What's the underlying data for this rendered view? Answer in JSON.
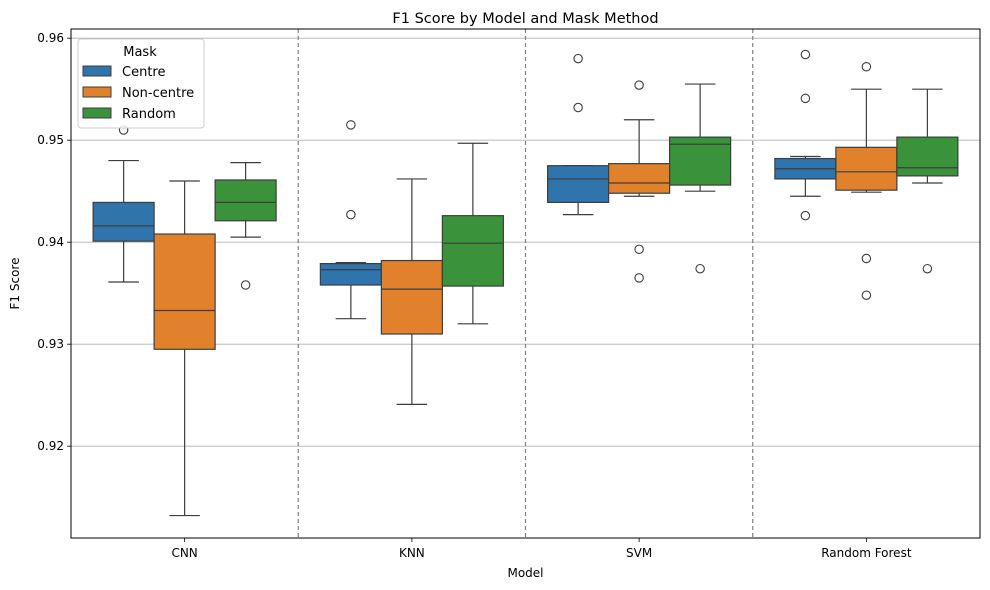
{
  "chart_data": {
    "type": "boxplot",
    "title": "F1 Score by Model and Mask Method",
    "xlabel": "Model",
    "ylabel": "F1 Score",
    "ylim": [
      0.911,
      0.9609
    ],
    "yticks": [
      0.92,
      0.93,
      0.94,
      0.95,
      0.96
    ],
    "ytick_labels": [
      "0.92",
      "0.93",
      "0.94",
      "0.95",
      "0.96"
    ],
    "grid": "y",
    "categories": [
      "CNN",
      "KNN",
      "SVM",
      "Random Forest"
    ],
    "legend": {
      "title": "Mask",
      "position": "top-left"
    },
    "series": [
      {
        "name": "Centre",
        "color": "#2f74ad",
        "boxes": [
          {
            "whisker_low": 0.9361,
            "q1": 0.9401,
            "median": 0.9416,
            "q3": 0.9439,
            "whisker_high": 0.948,
            "outliers": [
              0.951
            ]
          },
          {
            "whisker_low": 0.9325,
            "q1": 0.9358,
            "median": 0.9373,
            "q3": 0.9379,
            "whisker_high": 0.938,
            "outliers": [
              0.9515,
              0.9427
            ]
          },
          {
            "whisker_low": 0.9427,
            "q1": 0.9439,
            "median": 0.9462,
            "q3": 0.9475,
            "whisker_high": 0.9475,
            "outliers": [
              0.958,
              0.9532
            ]
          },
          {
            "whisker_low": 0.9445,
            "q1": 0.9462,
            "median": 0.9472,
            "q3": 0.9482,
            "whisker_high": 0.9484,
            "outliers": [
              0.9584,
              0.9541,
              0.9426
            ]
          }
        ]
      },
      {
        "name": "Non-centre",
        "color": "#e1812c",
        "boxes": [
          {
            "whisker_low": 0.9132,
            "q1": 0.9295,
            "median": 0.9333,
            "q3": 0.9408,
            "whisker_high": 0.946,
            "outliers": []
          },
          {
            "whisker_low": 0.9241,
            "q1": 0.931,
            "median": 0.9354,
            "q3": 0.9382,
            "whisker_high": 0.9462,
            "outliers": []
          },
          {
            "whisker_low": 0.9445,
            "q1": 0.9448,
            "median": 0.9458,
            "q3": 0.9477,
            "whisker_high": 0.952,
            "outliers": [
              0.9554,
              0.9393,
              0.9365
            ]
          },
          {
            "whisker_low": 0.9449,
            "q1": 0.9451,
            "median": 0.9469,
            "q3": 0.9493,
            "whisker_high": 0.955,
            "outliers": [
              0.9572,
              0.9384,
              0.9348
            ]
          }
        ]
      },
      {
        "name": "Random",
        "color": "#3a923a",
        "boxes": [
          {
            "whisker_low": 0.9405,
            "q1": 0.9421,
            "median": 0.9439,
            "q3": 0.9461,
            "whisker_high": 0.9478,
            "outliers": [
              0.9358
            ]
          },
          {
            "whisker_low": 0.932,
            "q1": 0.9357,
            "median": 0.9399,
            "q3": 0.9426,
            "whisker_high": 0.9497,
            "outliers": []
          },
          {
            "whisker_low": 0.945,
            "q1": 0.9456,
            "median": 0.9496,
            "q3": 0.9503,
            "whisker_high": 0.9555,
            "outliers": [
              0.9374
            ]
          },
          {
            "whisker_low": 0.9458,
            "q1": 0.9465,
            "median": 0.9473,
            "q3": 0.9503,
            "whisker_high": 0.955,
            "outliers": [
              0.9374
            ]
          }
        ]
      }
    ]
  }
}
